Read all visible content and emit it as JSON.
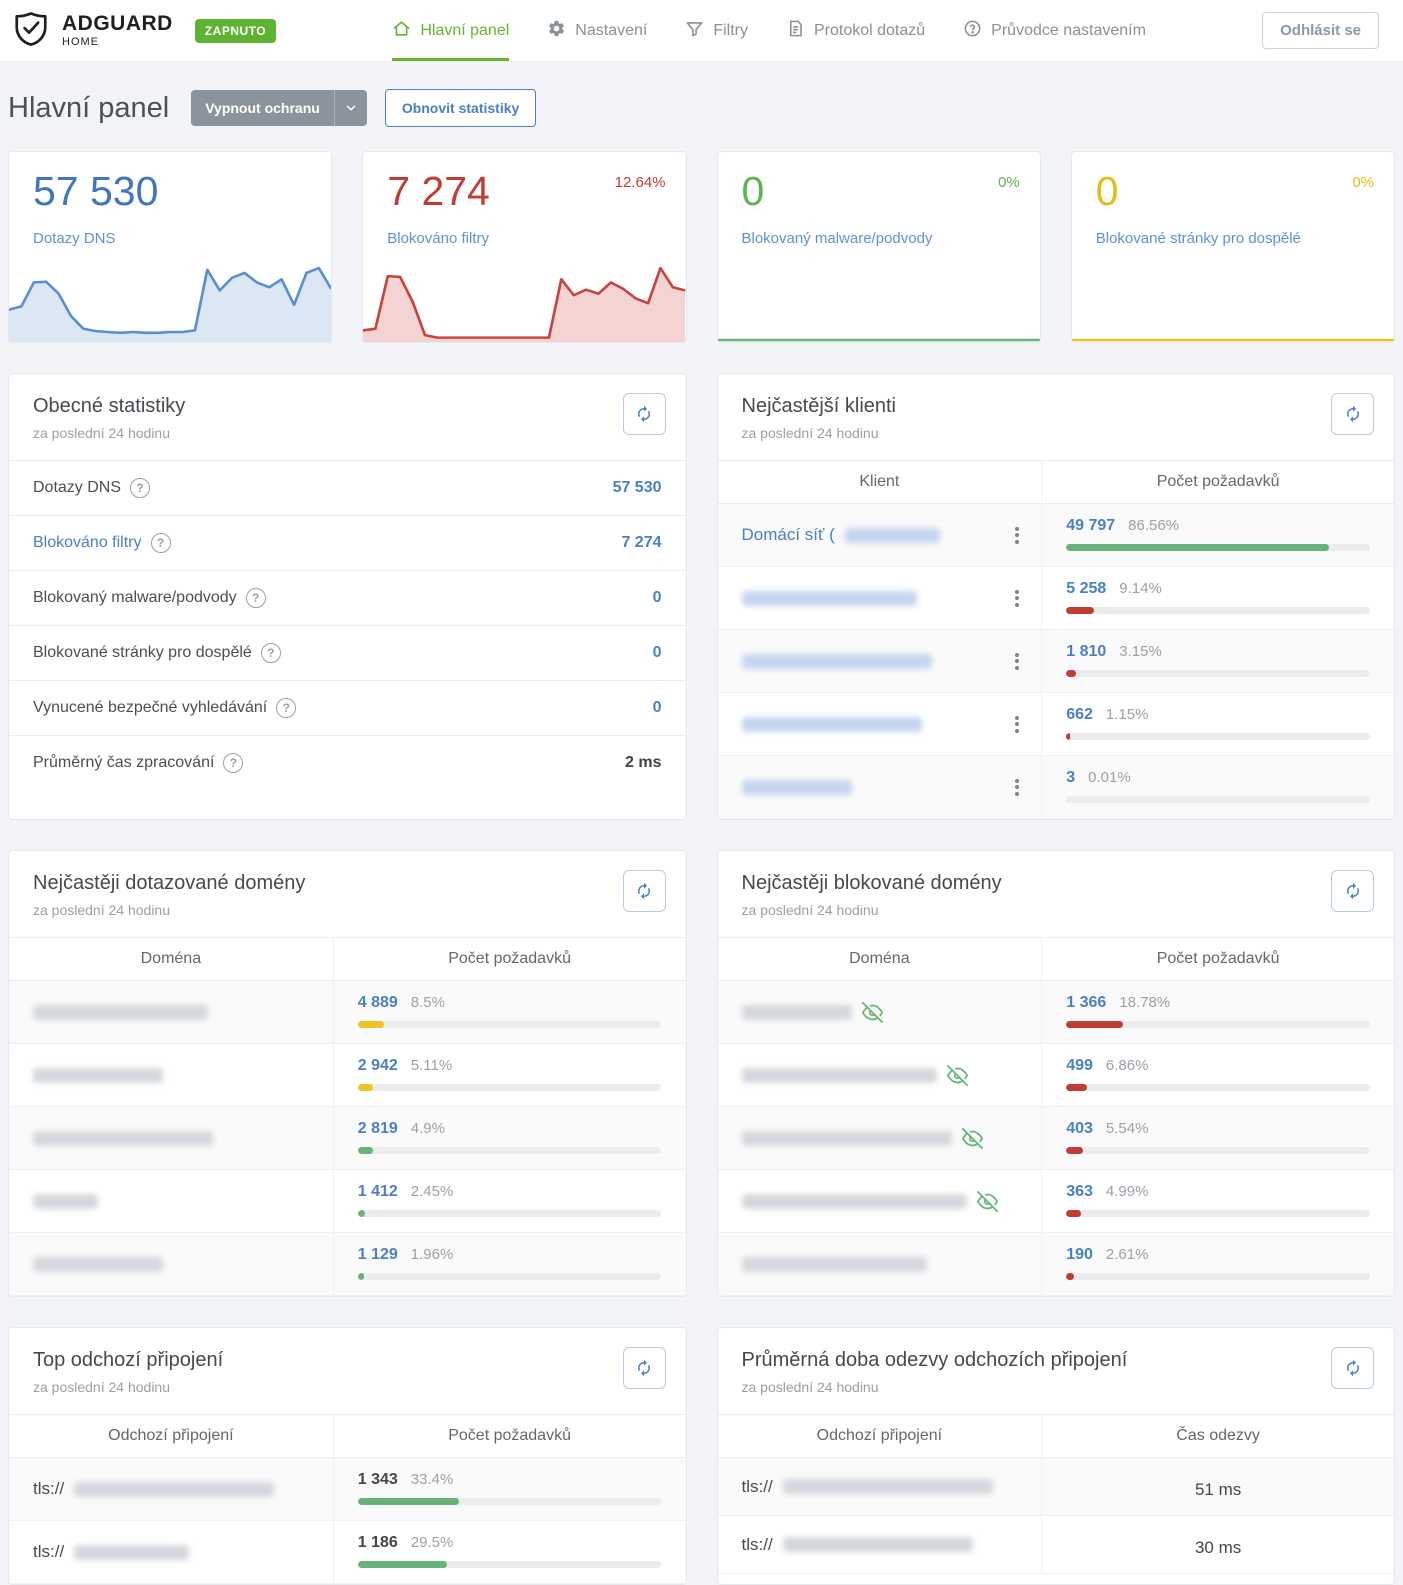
{
  "header": {
    "logo_title": "ADGUARD",
    "logo_subtitle": "HOME",
    "status_badge": "ZAPNUTO",
    "nav": [
      {
        "label": "Hlavní panel",
        "icon": "home-icon",
        "active": true
      },
      {
        "label": "Nastavení",
        "icon": "gear-icon",
        "active": false
      },
      {
        "label": "Filtry",
        "icon": "filter-icon",
        "active": false
      },
      {
        "label": "Protokol dotazů",
        "icon": "document-icon",
        "active": false
      },
      {
        "label": "Průvodce nastavením",
        "icon": "help-circle-icon",
        "active": false
      }
    ],
    "logout_label": "Odhlásit se"
  },
  "page": {
    "title": "Hlavní panel",
    "disable_protection_label": "Vypnout ochranu",
    "refresh_stats_label": "Obnovit statistiky"
  },
  "colors": {
    "accent_blue": "#4076bf",
    "accent_red": "#c23c35",
    "accent_green": "#5eb352",
    "accent_yellow": "#e3bd18",
    "label_blue": "#5d93d6",
    "bar": {
      "green": "#67b279",
      "red": "#c13c35",
      "yellow": "#edc423"
    }
  },
  "cards": [
    {
      "value": "57 530",
      "percent": "",
      "label": "Dotazy DNS",
      "value_color": "#4076bf",
      "percent_color": "#4076bf",
      "chart": "dns"
    },
    {
      "value": "7 274",
      "percent": "12.64%",
      "label": "Blokováno filtry",
      "value_color": "#c23c35",
      "percent_color": "#c23c35",
      "chart": "blocked"
    },
    {
      "value": "0",
      "percent": "0%",
      "label": "Blokovaný malware/podvody",
      "value_color": "#5eb352",
      "percent_color": "#5eb352",
      "chart": "malware"
    },
    {
      "value": "0",
      "percent": "0%",
      "label": "Blokované stránky pro dospělé",
      "value_color": "#e3bd18",
      "percent_color": "#e3bd18",
      "chart": "adult"
    }
  ],
  "chart_data": [
    {
      "id": "dns",
      "type": "area",
      "title": "Dotazy DNS — 24h sparkline (unlabeled axes, relative heights 0-100)",
      "values": [
        38,
        42,
        72,
        73,
        58,
        30,
        14,
        11,
        10,
        9,
        10,
        9,
        9,
        10,
        10,
        12,
        88,
        62,
        78,
        84,
        72,
        66,
        76,
        44,
        84,
        90,
        64
      ],
      "ylim": [
        0,
        100
      ],
      "line_color": "#5b8fd0",
      "fill_color": "#dbe7f5"
    },
    {
      "id": "blocked",
      "type": "area",
      "title": "Blokováno filtry — 24h sparkline (unlabeled axes, relative heights 0-100)",
      "values": [
        12,
        14,
        80,
        79,
        48,
        6,
        3,
        3,
        3,
        3,
        3,
        3,
        3,
        3,
        3,
        3,
        76,
        56,
        63,
        58,
        72,
        64,
        52,
        46,
        90,
        66,
        62
      ],
      "ylim": [
        0,
        100
      ],
      "line_color": "#c74440",
      "fill_color": "#f4d3d3"
    },
    {
      "id": "malware",
      "type": "area",
      "title": "Blokovaný malware/podvody — 24h sparkline (flat zero)",
      "values": [
        0,
        0,
        0,
        0,
        0,
        0,
        0,
        0,
        0,
        0,
        0,
        0,
        0,
        0,
        0,
        0,
        0,
        0,
        0,
        0,
        0,
        0,
        0,
        0,
        0,
        0,
        0
      ],
      "ylim": [
        0,
        100
      ],
      "line_color": "#67b279",
      "fill_color": "transparent"
    },
    {
      "id": "adult",
      "type": "area",
      "title": "Blokované stránky pro dospělé — 24h sparkline (flat zero)",
      "values": [
        0,
        0,
        0,
        0,
        0,
        0,
        0,
        0,
        0,
        0,
        0,
        0,
        0,
        0,
        0,
        0,
        0,
        0,
        0,
        0,
        0,
        0,
        0,
        0,
        0,
        0,
        0
      ],
      "ylim": [
        0,
        100
      ],
      "line_color": "#e8c227",
      "fill_color": "transparent"
    }
  ],
  "general_stats": {
    "title": "Obecné statistiky",
    "subtitle": "za poslední 24 hodinu",
    "rows": [
      {
        "label": "Dotazy DNS",
        "value": "57 530",
        "link": false,
        "dark": false
      },
      {
        "label": "Blokováno filtry",
        "value": "7 274",
        "link": true,
        "dark": false
      },
      {
        "label": "Blokovaný malware/podvody",
        "value": "0",
        "link": false,
        "dark": false
      },
      {
        "label": "Blokované stránky pro dospělé",
        "value": "0",
        "link": false,
        "dark": false
      },
      {
        "label": "Vynucené bezpečné vyhledávání",
        "value": "0",
        "link": false,
        "dark": false
      },
      {
        "label": "Průměrný čas zpracování",
        "value": "2 ms",
        "link": false,
        "dark": true
      }
    ]
  },
  "top_clients": {
    "title": "Nejčastější klienti",
    "subtitle": "za poslední 24 hodinu",
    "columns": [
      "Klient",
      "Počet požadavků"
    ],
    "has_menu": true,
    "redact_tint": "blue",
    "rows": [
      {
        "name": "Domácí síť (",
        "redacted_width": 95,
        "count": "49 797",
        "percent": "86.56%",
        "bar": 86.56,
        "bar_color": "green"
      },
      {
        "name": "",
        "redacted_width": 175,
        "count": "5 258",
        "percent": "9.14%",
        "bar": 9.14,
        "bar_color": "red"
      },
      {
        "name": "",
        "redacted_width": 190,
        "count": "1 810",
        "percent": "3.15%",
        "bar": 3.15,
        "bar_color": "red"
      },
      {
        "name": "",
        "redacted_width": 180,
        "count": "662",
        "percent": "1.15%",
        "bar": 1.15,
        "bar_color": "red"
      },
      {
        "name": "",
        "redacted_width": 110,
        "count": "3",
        "percent": "0.01%",
        "bar": 0.01,
        "bar_color": "red"
      }
    ]
  },
  "top_queried_domains": {
    "title": "Nejčastěji dotazované domény",
    "subtitle": "za poslední 24 hodinu",
    "columns": [
      "Doména",
      "Počet požadavků"
    ],
    "has_menu": false,
    "redact_tint": "gray",
    "rows": [
      {
        "redacted_width": 175,
        "count": "4 889",
        "percent": "8.5%",
        "bar": 8.5,
        "bar_color": "yellow"
      },
      {
        "redacted_width": 130,
        "count": "2 942",
        "percent": "5.11%",
        "bar": 5.11,
        "bar_color": "yellow"
      },
      {
        "redacted_width": 180,
        "count": "2 819",
        "percent": "4.9%",
        "bar": 4.9,
        "bar_color": "green"
      },
      {
        "redacted_width": 65,
        "count": "1 412",
        "percent": "2.45%",
        "bar": 2.45,
        "bar_color": "green"
      },
      {
        "redacted_width": 130,
        "count": "1 129",
        "percent": "1.96%",
        "bar": 1.96,
        "bar_color": "green"
      }
    ]
  },
  "top_blocked_domains": {
    "title": "Nejčastěji blokované domény",
    "subtitle": "za poslední 24 hodinu",
    "columns": [
      "Doména",
      "Počet požadavků"
    ],
    "has_menu": false,
    "redact_tint": "gray",
    "rows": [
      {
        "redacted_width": 110,
        "eye_off": true,
        "count": "1 366",
        "percent": "18.78%",
        "bar": 18.78,
        "bar_color": "red"
      },
      {
        "redacted_width": 195,
        "eye_off": true,
        "count": "499",
        "percent": "6.86%",
        "bar": 6.86,
        "bar_color": "red"
      },
      {
        "redacted_width": 210,
        "eye_off": true,
        "count": "403",
        "percent": "5.54%",
        "bar": 5.54,
        "bar_color": "red"
      },
      {
        "redacted_width": 225,
        "eye_off": true,
        "count": "363",
        "percent": "4.99%",
        "bar": 4.99,
        "bar_color": "red"
      },
      {
        "redacted_width": 185,
        "eye_off": false,
        "count": "190",
        "percent": "2.61%",
        "bar": 2.61,
        "bar_color": "red"
      }
    ]
  },
  "top_upstreams": {
    "title": "Top odchozí připojení",
    "subtitle": "za poslední 24 hodinu",
    "columns": [
      "Odchozí připojení",
      "Počet požadavků"
    ],
    "has_menu": false,
    "redact_tint": "gray",
    "count_dark": true,
    "rows": [
      {
        "prefix": "tls://",
        "redacted_width": 200,
        "count": "1 343",
        "percent": "33.4%",
        "bar": 33.4,
        "bar_color": "green"
      },
      {
        "prefix": "tls://",
        "redacted_width": 115,
        "count": "1 186",
        "percent": "29.5%",
        "bar": 29.5,
        "bar_color": "green"
      }
    ]
  },
  "avg_upstream_response": {
    "title": "Průměrná doba odezvy odchozích připojení",
    "subtitle": "za poslední 24 hodinu",
    "columns": [
      "Odchozí připojení",
      "Čas odezvy"
    ],
    "has_menu": false,
    "redact_tint": "gray",
    "rows": [
      {
        "prefix": "tls://",
        "redacted_width": 210,
        "value": "51 ms"
      },
      {
        "prefix": "tls://",
        "redacted_width": 190,
        "value": "30 ms"
      }
    ]
  }
}
